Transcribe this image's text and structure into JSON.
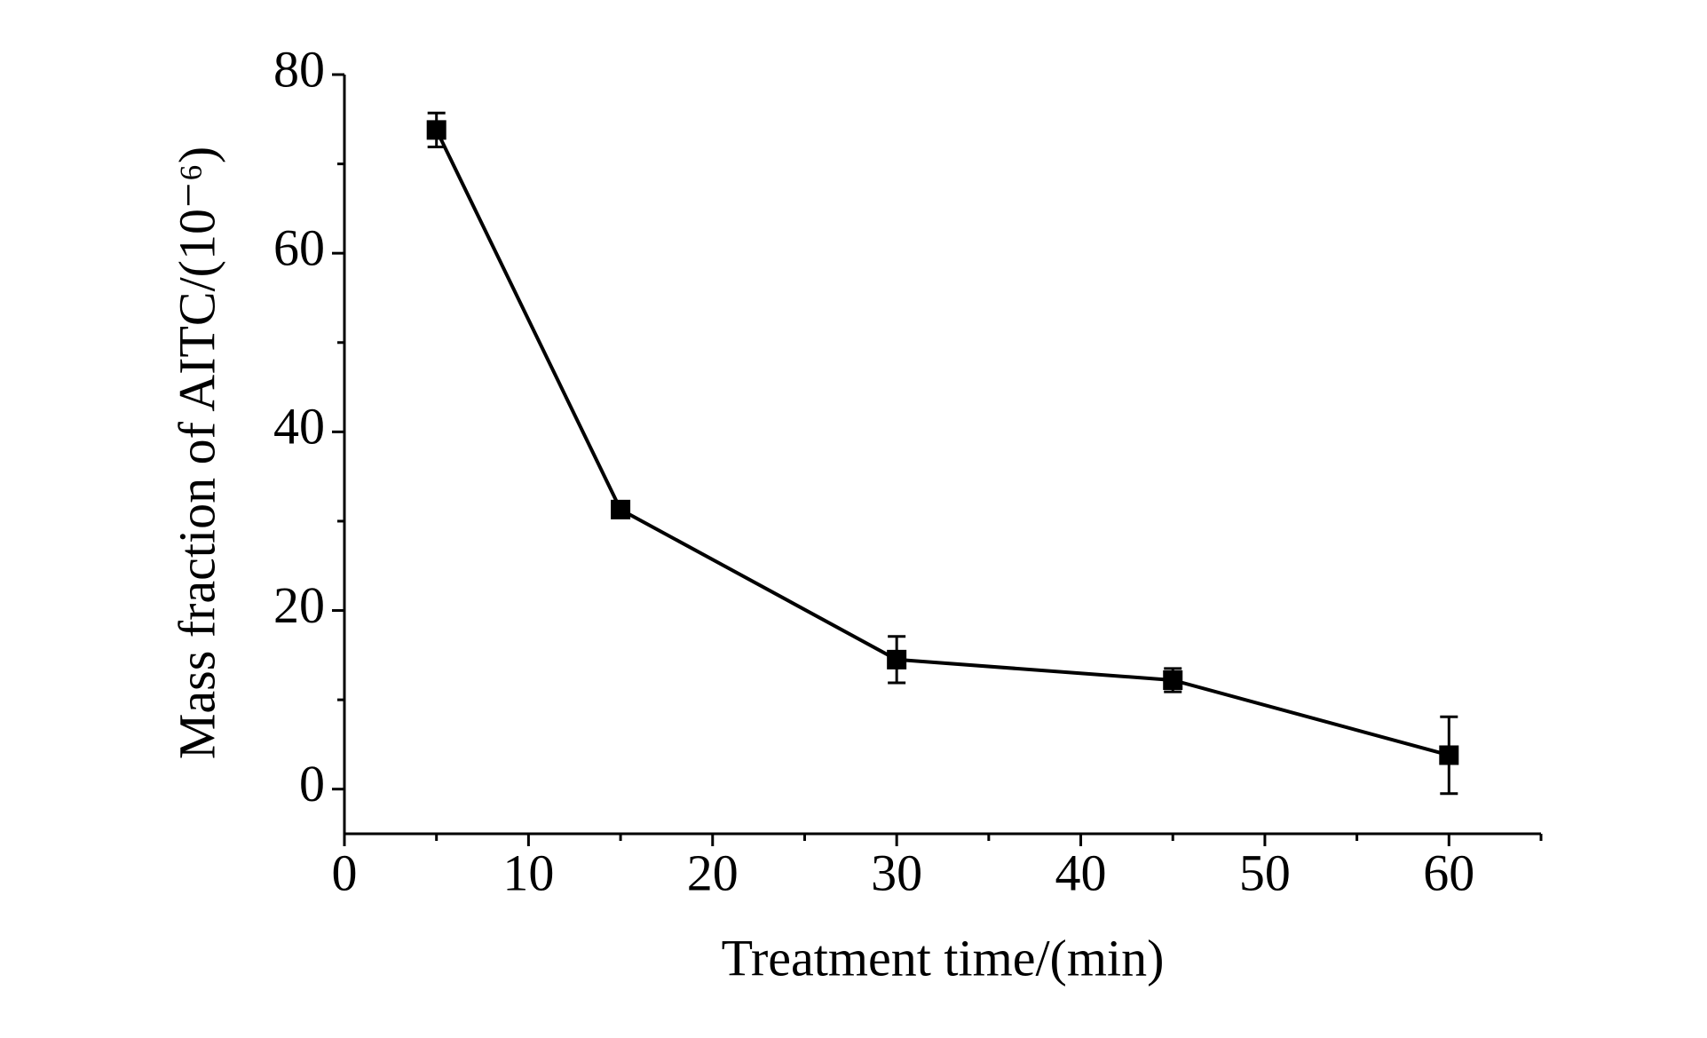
{
  "chart_data": {
    "type": "line",
    "xlabel": "Treatment time/(min)",
    "ylabel": "Mass fraction of AITC/(10⁻⁶)",
    "x": [
      5,
      15,
      30,
      45,
      60
    ],
    "series": [
      {
        "color": "#000000",
        "values": [
          73.8,
          31.3,
          14.5,
          12.2,
          3.8
        ],
        "errors": [
          1.9,
          0.5,
          2.6,
          1.3,
          4.3
        ]
      }
    ],
    "xlim": [
      0,
      65
    ],
    "xticks": [
      0,
      10,
      20,
      30,
      40,
      50,
      60
    ],
    "ylim": [
      -5,
      80
    ],
    "yticks": [
      0,
      20,
      40,
      60,
      80
    ],
    "grid": false
  }
}
